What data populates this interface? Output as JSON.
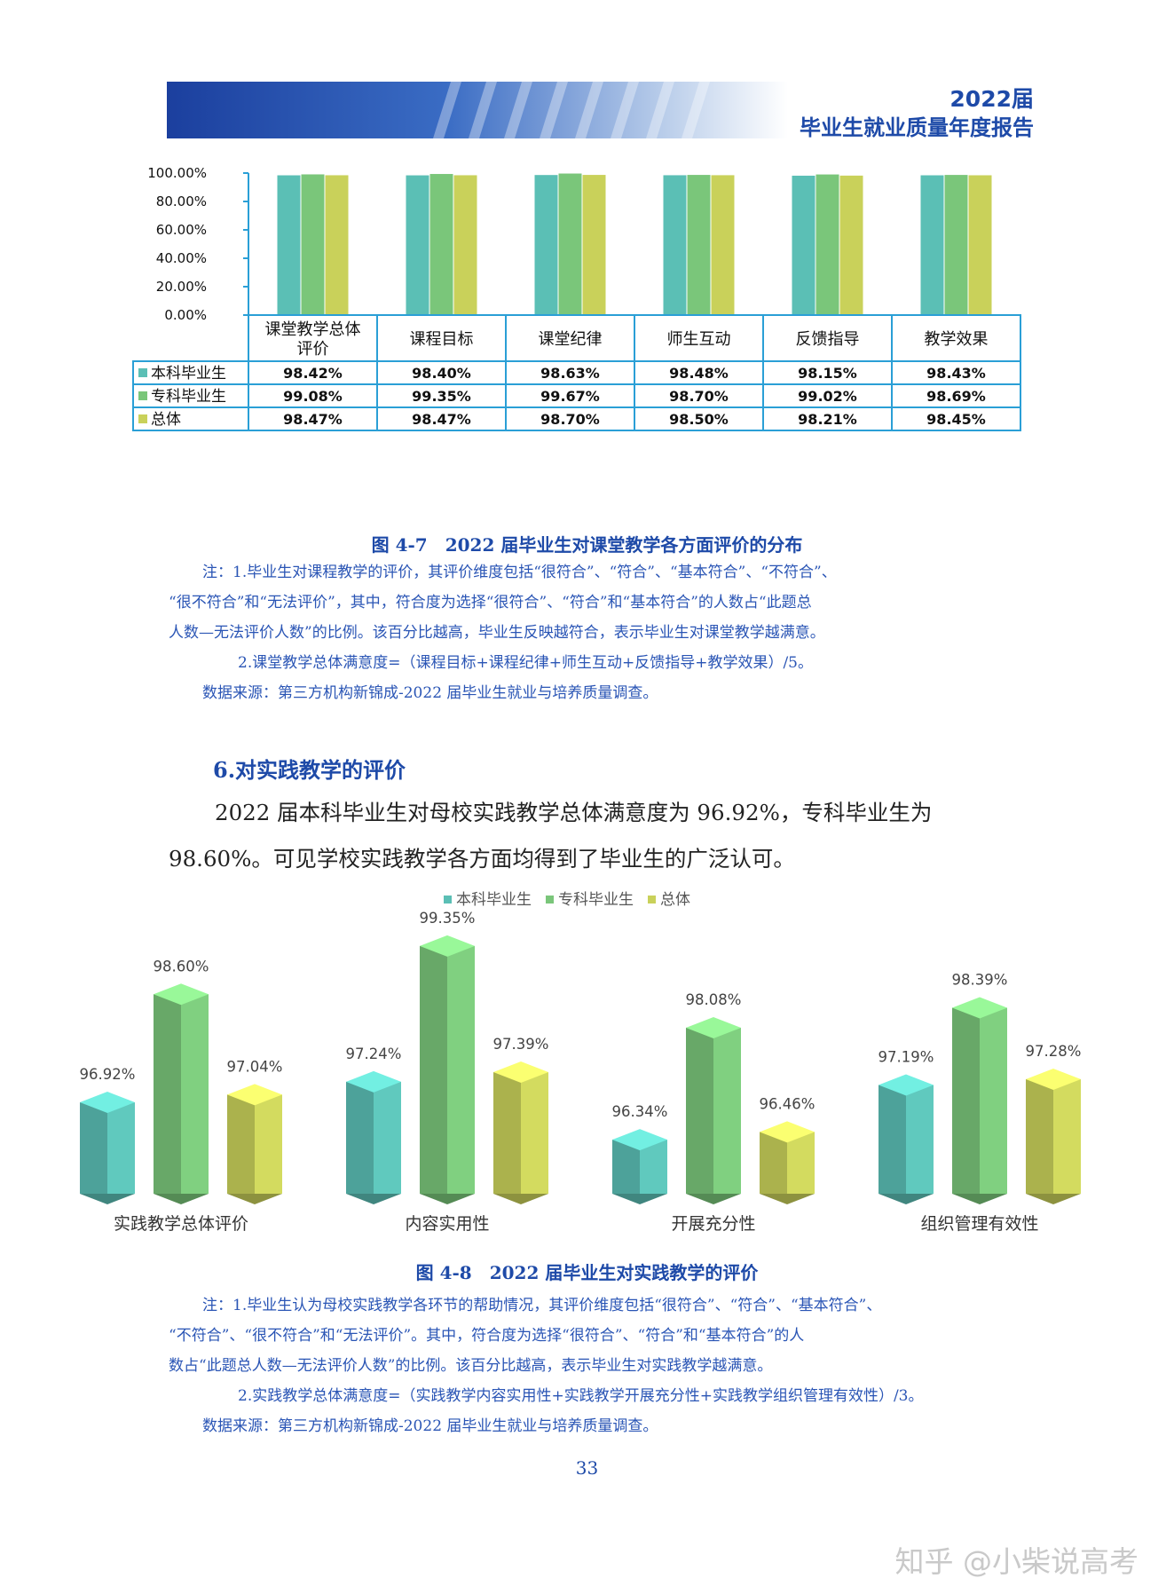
{
  "header": {
    "year": "2022届",
    "title": "毕业生就业质量年度报告"
  },
  "figure_4_7": {
    "caption": "图 4-7　2022 届毕业生对课堂教学各方面评价的分布",
    "notes": [
      "注：1.毕业生对课程教学的评价，其评价维度包括“很符合”、“符合”、“基本符合”、“不符合”、",
      "“很不符合”和“无法评价”，其中，符合度为选择“很符合”、“符合”和“基本符合”的人数占“此题总",
      "人数—无法评价人数”的比例。该百分比越高，毕业生反映越符合，表示毕业生对课堂教学越满意。",
      "2.课堂教学总体满意度=（课程目标+课程纪律+师生互动+反馈指导+教学效果）/5。",
      "数据来源：第三方机构新锦成-2022 届毕业生就业与培养质量调查。"
    ]
  },
  "section": {
    "title": "6.对实践教学的评价",
    "body": "2022 届本科毕业生对母校实践教学总体满意度为 96.92%，专科毕业生为 98.60%。可见学校实践教学各方面均得到了毕业生的广泛认可。"
  },
  "figure_4_8": {
    "caption": "图 4-8　2022 届毕业生对实践教学的评价",
    "notes": [
      "注：1.毕业生认为母校实践教学各环节的帮助情况，其评价维度包括“很符合”、“符合”、“基本符合”、",
      "“不符合”、“很不符合”和“无法评价”。其中，符合度为选择“很符合”、“符合”和“基本符合”的人",
      "数占“此题总人数—无法评价人数”的比例。该百分比越高，表示毕业生对实践教学越满意。",
      "2.实践教学总体满意度=（实践教学内容实用性+实践教学开展充分性+实践教学组织管理有效性）/3。",
      "数据来源：第三方机构新锦成-2022 届毕业生就业与培养质量调查。"
    ]
  },
  "page_number": "33",
  "watermark": "知乎 @小柴说高考",
  "colors": {
    "series1": "#5bbfb5",
    "series2": "#7ac67a",
    "series3": "#c9d15a",
    "accent": "#1e4aa8",
    "table_border": "#2a9fd6"
  },
  "chart_data": [
    {
      "type": "bar",
      "with_data_table": true,
      "categories": [
        "课堂教学总体评价",
        "课程目标",
        "课堂纪律",
        "师生互动",
        "反馈指导",
        "教学效果"
      ],
      "series": [
        {
          "name": "本科毕业生",
          "values": [
            98.42,
            98.4,
            98.63,
            98.48,
            98.15,
            98.43
          ],
          "labels": [
            "98.42%",
            "98.40%",
            "98.63%",
            "98.48%",
            "98.15%",
            "98.43%"
          ]
        },
        {
          "name": "专科毕业生",
          "values": [
            99.08,
            99.35,
            99.67,
            98.7,
            99.02,
            98.69
          ],
          "labels": [
            "99.08%",
            "99.35%",
            "99.67%",
            "98.70%",
            "99.02%",
            "98.69%"
          ]
        },
        {
          "name": "总体",
          "values": [
            98.47,
            98.47,
            98.7,
            98.5,
            98.21,
            98.45
          ],
          "labels": [
            "98.47%",
            "98.47%",
            "98.70%",
            "98.50%",
            "98.21%",
            "98.45%"
          ]
        }
      ],
      "yticks": [
        "0.00%",
        "20.00%",
        "40.00%",
        "60.00%",
        "80.00%",
        "100.00%"
      ],
      "ylim": [
        0,
        100
      ],
      "grid": false,
      "legend": "table-rows"
    },
    {
      "type": "bar",
      "style": "3d",
      "categories": [
        "实践教学总体评价",
        "内容实用性",
        "开展充分性",
        "组织管理有效性"
      ],
      "series": [
        {
          "name": "本科毕业生",
          "values": [
            96.92,
            97.24,
            96.34,
            97.19
          ],
          "labels": [
            "96.92%",
            "97.24%",
            "96.34%",
            "97.19%"
          ]
        },
        {
          "name": "专科毕业生",
          "values": [
            98.6,
            99.35,
            98.08,
            98.39
          ],
          "labels": [
            "98.60%",
            "99.35%",
            "98.08%",
            "98.39%"
          ]
        },
        {
          "name": "总体",
          "values": [
            97.04,
            97.39,
            96.46,
            97.28
          ],
          "labels": [
            "97.04%",
            "97.39%",
            "96.46%",
            "97.28%"
          ]
        }
      ],
      "ylim": [
        95.5,
        99.5
      ],
      "grid": false,
      "legend": "top"
    }
  ]
}
